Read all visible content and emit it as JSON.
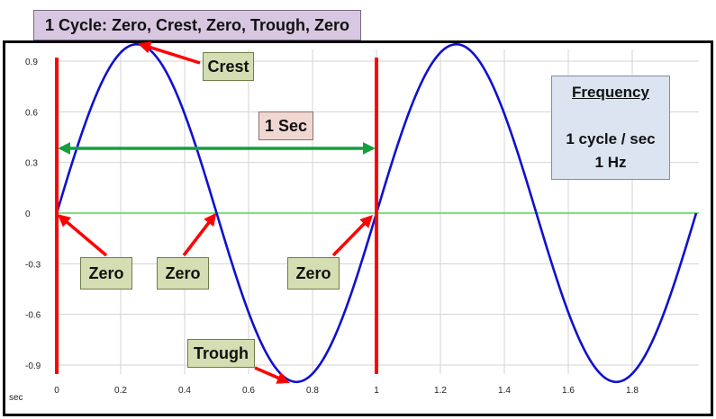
{
  "title": "1 Cycle: Zero, Crest, Zero, Trough, Zero",
  "annotations": {
    "crest": "Crest",
    "trough": "Trough",
    "zero": "Zero",
    "one_sec": "1 Sec"
  },
  "frequency_box": {
    "title": "Frequency",
    "line1": "1 cycle / sec",
    "line2": "1 Hz"
  },
  "colors": {
    "wave": "#1010d0",
    "axis_line": "#33cc33",
    "arrow_red": "#ff0000",
    "arrow_green": "#13a040"
  },
  "chart_data": {
    "type": "line",
    "xlabel": "sec",
    "ylabel": "",
    "xlim": [
      0,
      2
    ],
    "ylim": [
      -1.05,
      1.05
    ],
    "x_ticks": [
      "0",
      "0.2",
      "0.4",
      "0.6",
      "0.8",
      "1",
      "1.2",
      "1.4",
      "1.6",
      "1.8"
    ],
    "y_ticks": [
      "0.9",
      "0.6",
      "0.3",
      "0",
      "-0.3",
      "-0.6",
      "-0.9"
    ],
    "series": [
      {
        "x": [
          0,
          0.125,
          0.25,
          0.375,
          0.5,
          0.625,
          0.75,
          0.875,
          1,
          1.125,
          1.25,
          1.375,
          1.5,
          1.625,
          1.75,
          1.875,
          2
        ],
        "values": [
          0,
          0.707,
          1,
          0.707,
          0,
          -0.707,
          -1,
          -0.707,
          0,
          0.707,
          1,
          0.707,
          0,
          -0.707,
          -1,
          -0.707,
          0
        ]
      }
    ],
    "frequency_hz": 1,
    "amplitude": 1,
    "grid": true,
    "markers": {
      "crest": [
        0.25,
        1
      ],
      "trough": [
        0.75,
        -1
      ],
      "zeros": [
        [
          0,
          0
        ],
        [
          0.5,
          0
        ],
        [
          1,
          0
        ]
      ],
      "vertical_lines_x": [
        0,
        1
      ],
      "one_sec_span": [
        0,
        1
      ]
    }
  }
}
